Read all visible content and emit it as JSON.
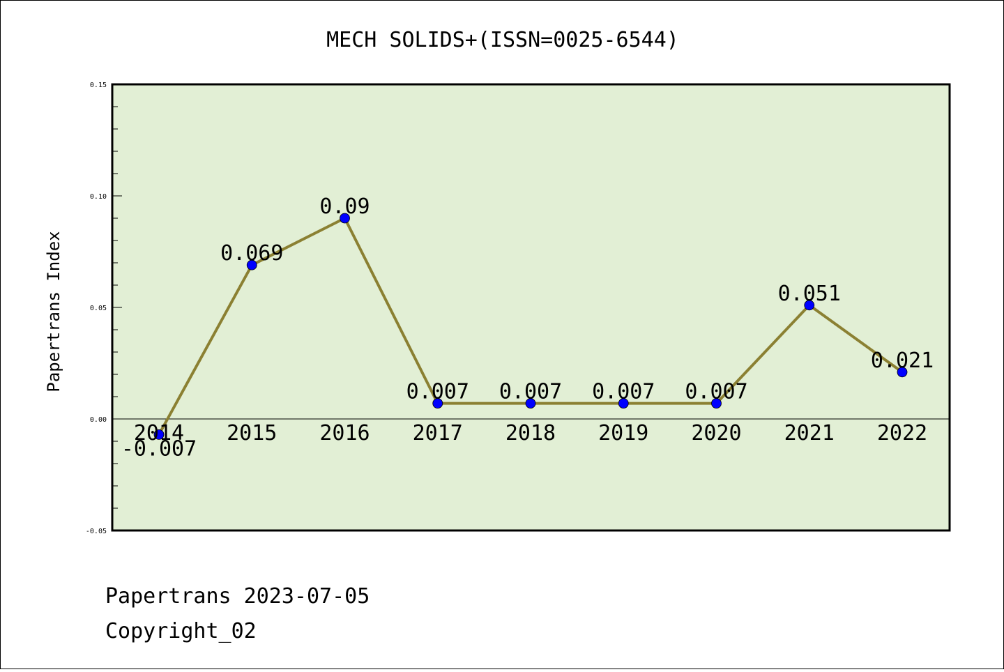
{
  "footer": {
    "line1": "Papertrans 2023-07-05",
    "line2": "Copyright_02"
  },
  "chart_data": {
    "type": "line",
    "title": "MECH SOLIDS+(ISSN=0025-6544)",
    "xlabel": "",
    "ylabel": "Papertrans Index",
    "x": [
      "2014",
      "2015",
      "2016",
      "2017",
      "2018",
      "2019",
      "2020",
      "2021",
      "2022"
    ],
    "series": [
      {
        "values": [
          -0.007,
          0.069,
          0.09,
          0.007,
          0.007,
          0.007,
          0.007,
          0.051,
          0.021
        ],
        "labels": [
          "-0.007",
          "0.069",
          "0.09",
          "0.007",
          "0.007",
          "0.007",
          "0.007",
          "0.051",
          "0.021"
        ]
      }
    ],
    "ylim": [
      -0.05,
      0.15
    ],
    "yticks": [
      "-0.05",
      "0.00",
      "0.05",
      "0.10",
      "0.15"
    ],
    "grid": false,
    "colors": {
      "plot_background": "#e2efd5",
      "line": "#8b8032",
      "marker": "#0000ff"
    }
  }
}
